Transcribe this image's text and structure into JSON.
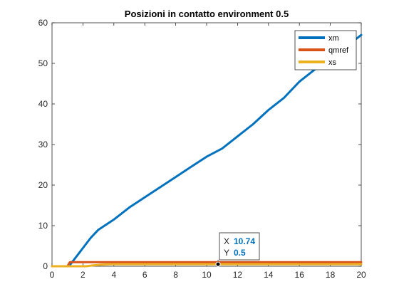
{
  "chart_data": {
    "type": "line",
    "title": "Posizioni in contatto environment 0.5",
    "xlabel": "",
    "ylabel": "",
    "xlim": [
      0,
      20
    ],
    "ylim": [
      0,
      60
    ],
    "xticks": [
      0,
      2,
      4,
      6,
      8,
      10,
      12,
      14,
      16,
      18,
      20
    ],
    "yticks": [
      0,
      10,
      20,
      30,
      40,
      50,
      60
    ],
    "grid": false,
    "legend_position": "top-right",
    "series": [
      {
        "name": "xm",
        "color": "#0072BD",
        "x": [
          0,
          1.0,
          1.2,
          1.6,
          2.0,
          2.5,
          3.0,
          4.0,
          5.0,
          6.0,
          7.0,
          8.0,
          9.0,
          10.0,
          11.0,
          12.0,
          13.0,
          14.0,
          15.0,
          16.0,
          17.0,
          18.0,
          19.0,
          20.0
        ],
        "y": [
          0,
          0,
          0.5,
          2.5,
          4.5,
          7.0,
          9.0,
          11.5,
          14.5,
          17.0,
          19.5,
          22.0,
          24.5,
          27.0,
          29.0,
          32.0,
          35.0,
          38.5,
          41.5,
          45.5,
          48.5,
          51.0,
          54.0,
          57.0
        ]
      },
      {
        "name": "qmref",
        "color": "#D95319",
        "x": [
          0,
          1.0,
          1.15,
          20.0
        ],
        "y": [
          0,
          0,
          1.0,
          1.0
        ]
      },
      {
        "name": "xs",
        "color": "#EDB120",
        "x": [
          0,
          2.2,
          2.6,
          3.2,
          3.8,
          20.0
        ],
        "y": [
          0,
          0,
          0.2,
          0.4,
          0.5,
          0.5
        ]
      }
    ],
    "datatip": {
      "x_key": "X",
      "x_value": "10.74",
      "y_key": "Y",
      "y_value": "0.5",
      "x": 10.74,
      "y": 0.5
    }
  }
}
